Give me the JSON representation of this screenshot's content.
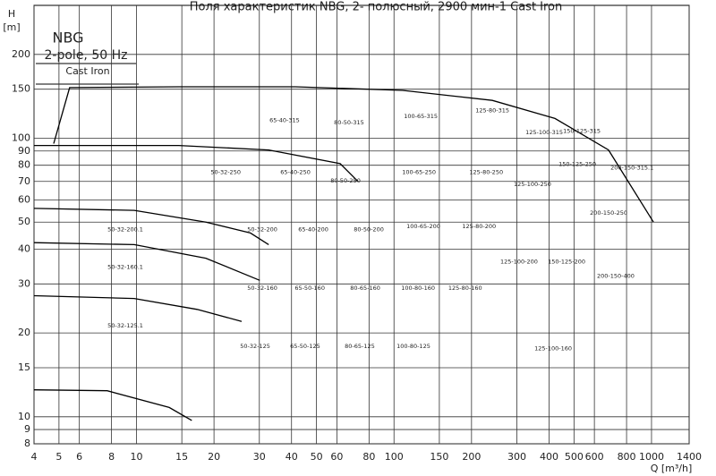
{
  "chart_data": {
    "type": "line",
    "title": "Поля характеристик NBG, 2- полюсный, 2900 мин-1 Cast Iron",
    "x_label": "Q [m³/h]",
    "y_label": [
      "H",
      "[m]"
    ],
    "box_lines": [
      "NBG",
      "2-pole, 50 Hz",
      "Cast Iron"
    ],
    "log_x": true,
    "log_y": true,
    "grid": true,
    "color": "#000000",
    "xlim": [
      4,
      1400
    ],
    "ylim": [
      8,
      300
    ],
    "xticks": [
      4,
      5,
      6,
      8,
      10,
      15,
      20,
      30,
      40,
      50,
      60,
      80,
      100,
      150,
      200,
      300,
      400,
      500,
      600,
      800,
      1000,
      1400
    ],
    "yticks": [
      8,
      9,
      10,
      15,
      20,
      30,
      40,
      50,
      60,
      70,
      80,
      90,
      100,
      150,
      200
    ],
    "series": [
      {
        "x": [
          4.77,
          5.5,
          14.6,
          41.4,
          108,
          241,
          422,
          681,
          1017
        ],
        "values": [
          95.7,
          152,
          153,
          153,
          148.6,
          136.8,
          117.8,
          90.8,
          50.0
        ]
      },
      {
        "x": [
          4,
          14.6,
          32.6,
          61.8,
          72.5
        ],
        "values": [
          94.2,
          94.2,
          90.8,
          81.1,
          70.0
        ]
      },
      {
        "x": [
          4,
          9.8,
          18.6,
          27.7,
          32.6
        ],
        "values": [
          56.0,
          55.1,
          50.0,
          45.7,
          41.5
        ]
      },
      {
        "x": [
          4,
          9.8,
          18.6,
          30.1
        ],
        "values": [
          42.2,
          41.5,
          37.1,
          30.9
        ]
      },
      {
        "x": [
          4,
          9.8,
          17.2,
          25.6
        ],
        "values": [
          27.2,
          26.6,
          24.3,
          22.0
        ]
      },
      {
        "x": [
          4,
          7.7,
          13.4,
          16.4
        ],
        "values": [
          12.5,
          12.4,
          10.8,
          9.7
        ]
      }
    ],
    "annotations": [
      {
        "text": "65-40-315",
        "x": 37.6,
        "y": 116
      },
      {
        "text": "80-50-315",
        "x": 66.9,
        "y": 114
      },
      {
        "text": "100-65-315",
        "x": 127,
        "y": 120
      },
      {
        "text": "125-80-315",
        "x": 241,
        "y": 126
      },
      {
        "text": "125-100-315",
        "x": 383,
        "y": 105
      },
      {
        "text": "150-125-315",
        "x": 536,
        "y": 106
      },
      {
        "text": "150-125-250",
        "x": 515,
        "y": 80.6
      },
      {
        "text": "200-150-315.1",
        "x": 840,
        "y": 78.3
      },
      {
        "text": "50-32-250",
        "x": 22.2,
        "y": 75.4
      },
      {
        "text": "65-40-250",
        "x": 41.4,
        "y": 75.4
      },
      {
        "text": "80-50-250",
        "x": 64.8,
        "y": 70.5
      },
      {
        "text": "100-65-250",
        "x": 125,
        "y": 75.4
      },
      {
        "text": "125-80-250",
        "x": 228,
        "y": 75.4
      },
      {
        "text": "125-100-250",
        "x": 345,
        "y": 68.4
      },
      {
        "text": "200-150-250",
        "x": 682,
        "y": 53.9
      },
      {
        "text": "50-32-200.1",
        "x": 9.05,
        "y": 47.1
      },
      {
        "text": "50-32-200",
        "x": 30.8,
        "y": 47.1
      },
      {
        "text": "65-40-200",
        "x": 48.6,
        "y": 47.1
      },
      {
        "text": "80-50-200",
        "x": 79.8,
        "y": 47.1
      },
      {
        "text": "100-65-200",
        "x": 130,
        "y": 48.2
      },
      {
        "text": "125-80-200",
        "x": 214,
        "y": 48.2
      },
      {
        "text": "50-32-160.1",
        "x": 9.05,
        "y": 34.5
      },
      {
        "text": "125-100-200",
        "x": 306,
        "y": 36.1
      },
      {
        "text": "150-125-200",
        "x": 468,
        "y": 36.1
      },
      {
        "text": "200-150-400",
        "x": 726,
        "y": 32.0
      },
      {
        "text": "50-32-160",
        "x": 30.8,
        "y": 29.0
      },
      {
        "text": "65-50-160",
        "x": 47.1,
        "y": 29.0
      },
      {
        "text": "80-65-160",
        "x": 77.3,
        "y": 29.0
      },
      {
        "text": "100-80-160",
        "x": 124,
        "y": 29.0
      },
      {
        "text": "125-80-160",
        "x": 189,
        "y": 29.0
      },
      {
        "text": "50-32-125.1",
        "x": 9.05,
        "y": 21.2
      },
      {
        "text": "50-32-125",
        "x": 28.9,
        "y": 17.9
      },
      {
        "text": "65-50-125",
        "x": 45.2,
        "y": 17.9
      },
      {
        "text": "80-65-125",
        "x": 73.6,
        "y": 17.9
      },
      {
        "text": "100-80-125",
        "x": 119,
        "y": 17.9
      },
      {
        "text": "125-100-160",
        "x": 415,
        "y": 17.6
      }
    ]
  }
}
